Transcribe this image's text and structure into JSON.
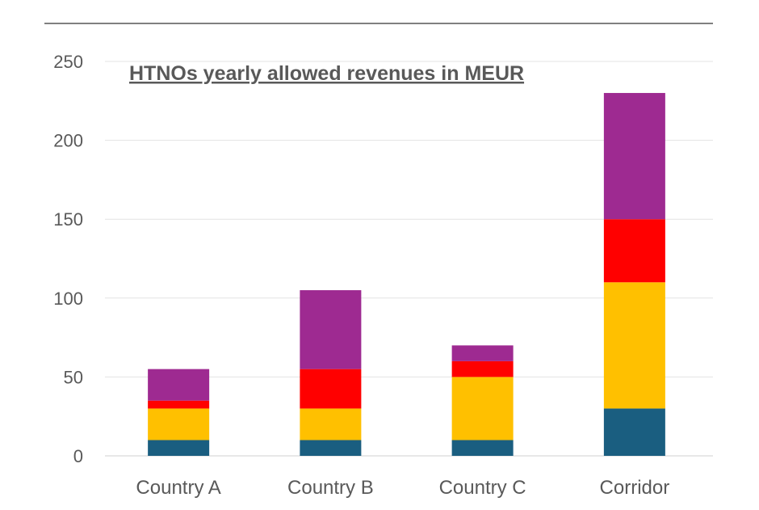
{
  "chart_data": {
    "type": "bar",
    "stacked": true,
    "title": "HTNOs yearly allowed revenues in MEUR",
    "xlabel": "",
    "ylabel": "",
    "ylim": [
      0,
      250
    ],
    "yticks": [
      "0",
      "50",
      "100",
      "150",
      "200",
      "250"
    ],
    "grid": true,
    "categories": [
      "Country A",
      "Country B",
      "Country C",
      "Corridor"
    ],
    "series": [
      {
        "color": "#1a5e80",
        "values": [
          10,
          10,
          10,
          30
        ]
      },
      {
        "color": "#ffc000",
        "values": [
          20,
          20,
          40,
          80
        ]
      },
      {
        "color": "#ff0000",
        "values": [
          5,
          25,
          10,
          40
        ]
      },
      {
        "color": "#9e2a91",
        "values": [
          20,
          50,
          10,
          80
        ]
      }
    ]
  }
}
